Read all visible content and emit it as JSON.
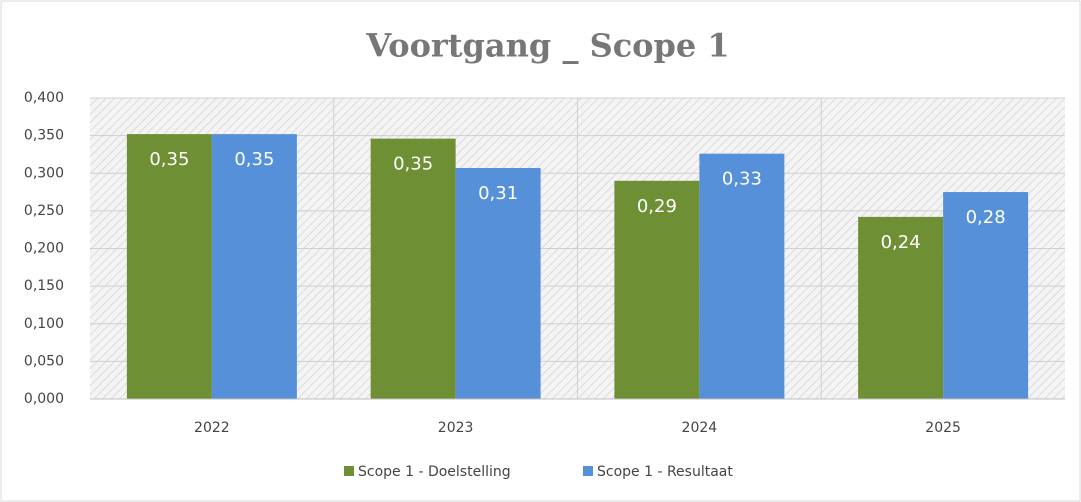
{
  "chart_data": {
    "type": "bar",
    "title": "Voortgang _ Scope 1",
    "categories": [
      "2022",
      "2023",
      "2024",
      "2025"
    ],
    "series": [
      {
        "name": "Scope 1 - Doelstelling",
        "color": "#6f8f35",
        "values": [
          0.352,
          0.346,
          0.29,
          0.242
        ],
        "value_labels": [
          "0,35",
          "0,35",
          "0,29",
          "0,24"
        ]
      },
      {
        "name": "Scope 1 - Resultaat",
        "color": "#5590d9",
        "values": [
          0.352,
          0.307,
          0.326,
          0.275
        ],
        "value_labels": [
          "0,35",
          "0,31",
          "0,33",
          "0,28"
        ]
      }
    ],
    "ylim": [
      0,
      0.4
    ],
    "yticks": [
      {
        "value": 0,
        "label": "0,000"
      },
      {
        "value": 0.05,
        "label": "0,050"
      },
      {
        "value": 0.1,
        "label": "0,100"
      },
      {
        "value": 0.15,
        "label": "0,150"
      },
      {
        "value": 0.2,
        "label": "0,200"
      },
      {
        "value": 0.25,
        "label": "0,250"
      },
      {
        "value": 0.3,
        "label": "0,300"
      },
      {
        "value": 0.35,
        "label": "0,350"
      },
      {
        "value": 0.4,
        "label": "0,400"
      }
    ],
    "grid": true,
    "legend": "bottom"
  }
}
